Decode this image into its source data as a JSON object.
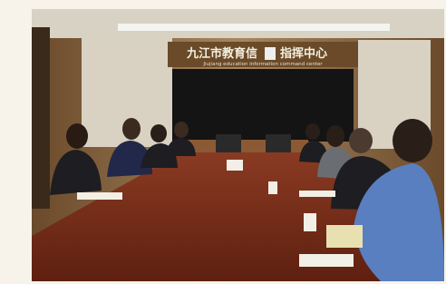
{
  "sign": {
    "title_left": "九江市教育信",
    "title_right": "指挥中心",
    "subtitle": "Jiujiang education information command center"
  }
}
